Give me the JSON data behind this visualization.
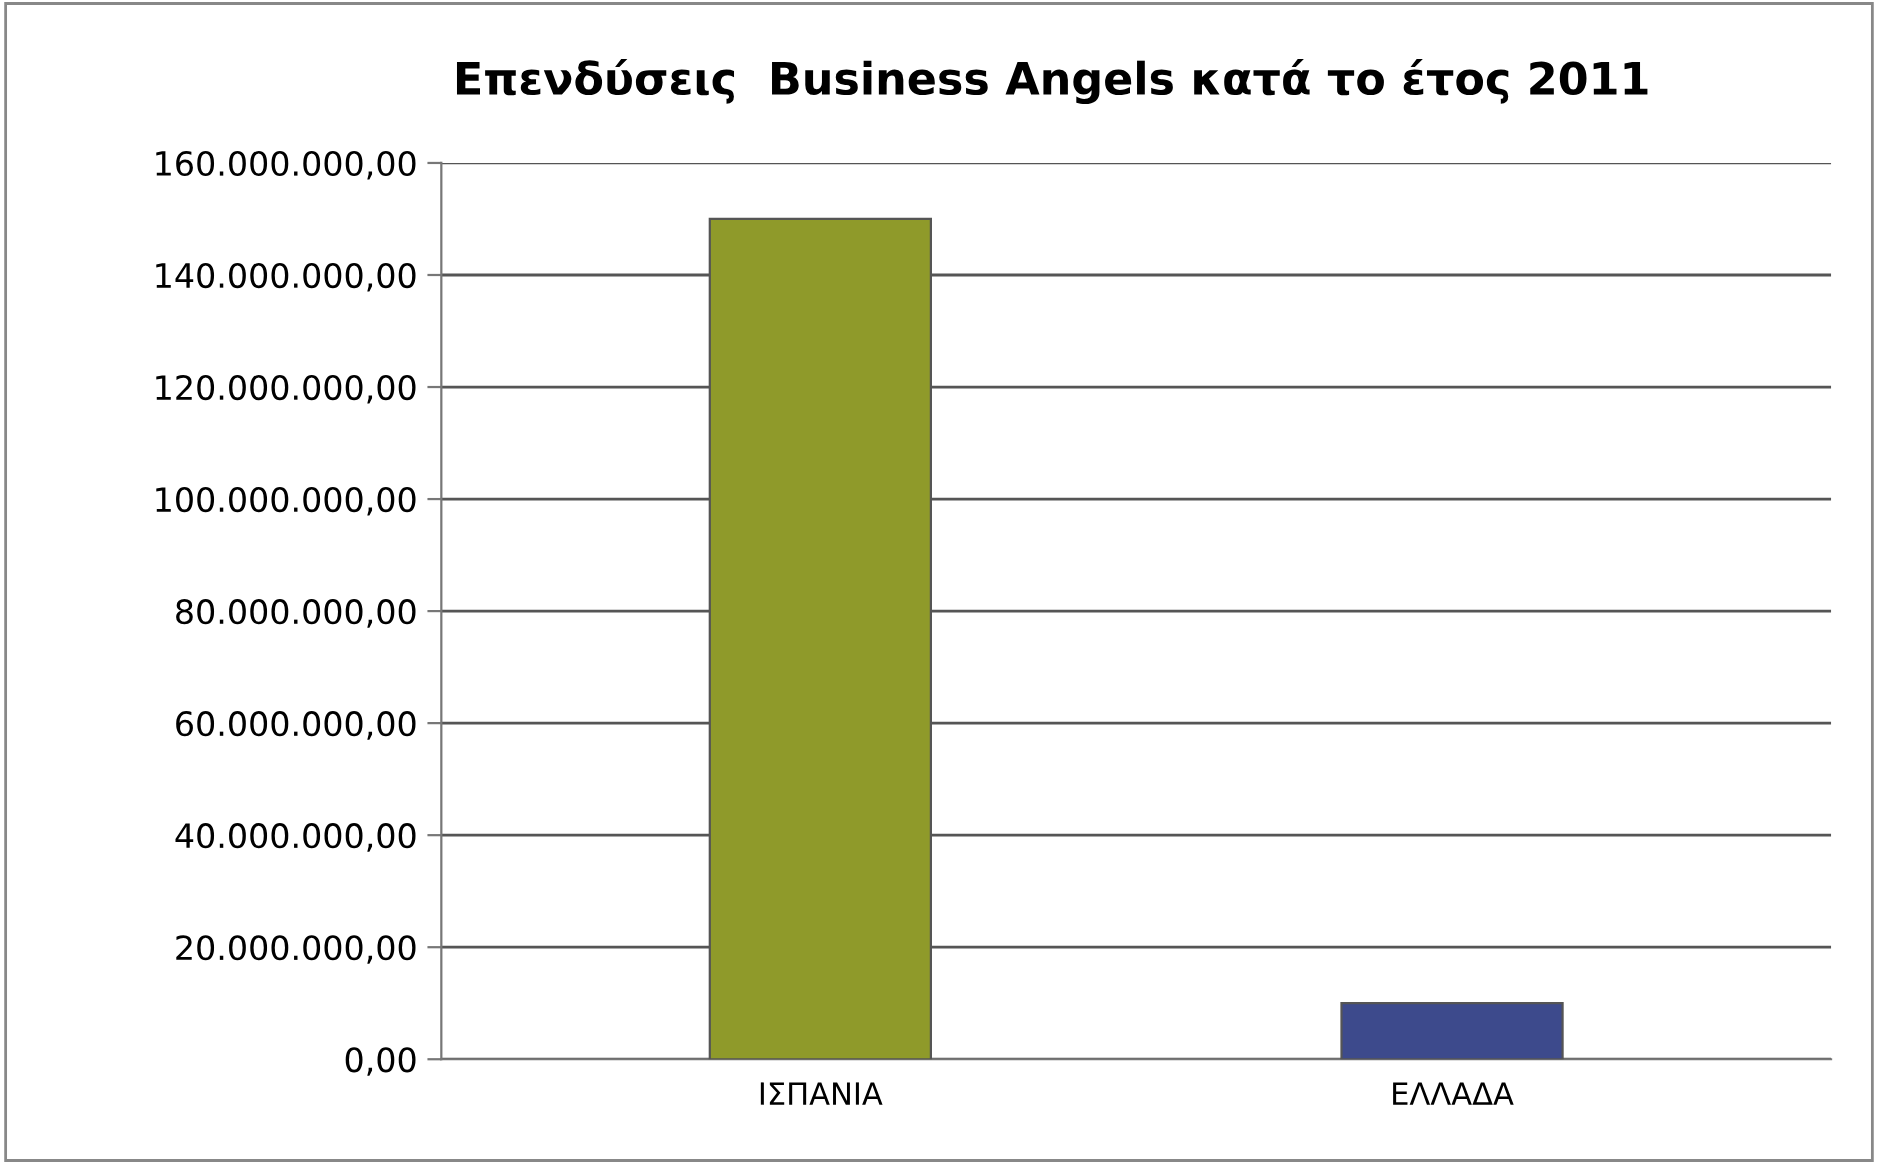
{
  "chart_data": {
    "type": "bar",
    "title": "Επενδύσεις  Business Angels κατά το έτος 2011",
    "categories": [
      "ΙΣΠΑΝΙΑ",
      "ΕΛΛΑΔΑ"
    ],
    "values": [
      150000000,
      10000000
    ],
    "colors": [
      "#8f9a2a",
      "#3d4a8c"
    ],
    "ylim": [
      0,
      160000000
    ],
    "yticks": [
      {
        "value": 0,
        "label": "0,00"
      },
      {
        "value": 20000000,
        "label": "20.000.000,00"
      },
      {
        "value": 40000000,
        "label": "40.000.000,00"
      },
      {
        "value": 60000000,
        "label": "60.000.000,00"
      },
      {
        "value": 80000000,
        "label": "80.000.000,00"
      },
      {
        "value": 100000000,
        "label": "100.000.000,00"
      },
      {
        "value": 120000000,
        "label": "120.000.000,00"
      },
      {
        "value": 140000000,
        "label": "140.000.000,00"
      },
      {
        "value": 160000000,
        "label": "160.000.000,00"
      }
    ],
    "grid": "y",
    "legend": false
  }
}
